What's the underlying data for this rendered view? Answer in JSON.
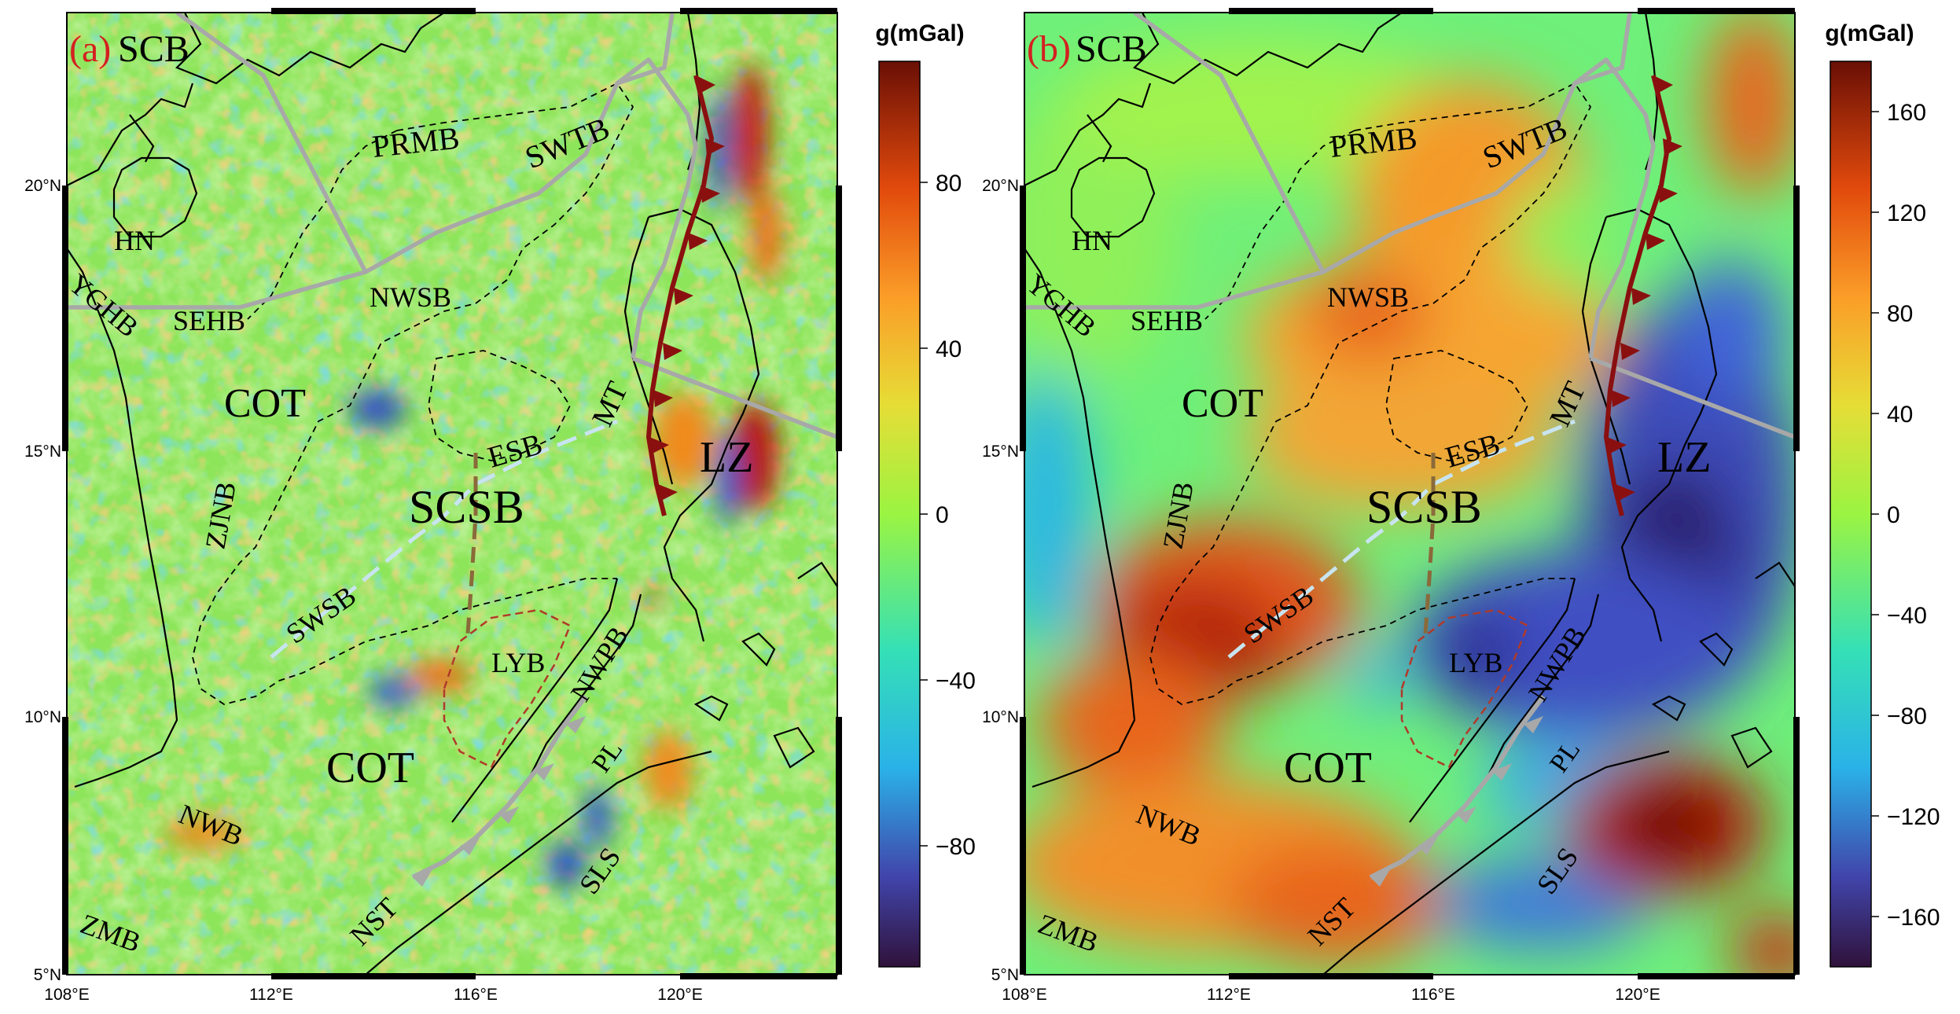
{
  "panels": [
    {
      "id": "a",
      "tag": "(a)",
      "lon_ticks": [
        "108°E",
        "112°E",
        "116°E",
        "120°E"
      ],
      "lat_ticks": [
        "20°N",
        "15°N",
        "10°N",
        "5°N"
      ],
      "colorbar": {
        "title": "g(mGal)",
        "ticks": [
          "80",
          "40",
          "0",
          "−40",
          "−80"
        ]
      },
      "labels": {
        "scb": "SCB",
        "prmb": "PRMB",
        "swtb": "SWTB",
        "hn": "HN",
        "yghb": "YGHB",
        "sehb": "SEHB",
        "nwsb": "NWSB",
        "cot_north": "COT",
        "mt": "MT",
        "esb": "ESB",
        "lz": "LZ",
        "zjnb": "ZJNB",
        "scsb": "SCSB",
        "swsb": "SWSB",
        "lyb": "LYB",
        "nwpb": "NWPB",
        "cot_south": "COT",
        "pl": "PL",
        "nwb": "NWB",
        "sls": "SLS",
        "zmb": "ZMB",
        "nst": "NST"
      }
    },
    {
      "id": "b",
      "tag": "(b)",
      "lon_ticks": [
        "108°E",
        "112°E",
        "116°E",
        "120°E"
      ],
      "lat_ticks": [
        "20°N",
        "15°N",
        "10°N",
        "5°N"
      ],
      "colorbar": {
        "title": "g(mGal)",
        "ticks": [
          "160",
          "120",
          "80",
          "40",
          "0",
          "−40",
          "−80",
          "−120",
          "−160"
        ]
      },
      "labels": {
        "scb": "SCB",
        "prmb": "PRMB",
        "swtb": "SWTB",
        "hn": "HN",
        "yghb": "YGHB",
        "sehb": "SEHB",
        "nwsb": "NWSB",
        "cot_north": "COT",
        "mt": "MT",
        "esb": "ESB",
        "lz": "LZ",
        "zjnb": "ZJNB",
        "scsb": "SCSB",
        "swsb": "SWSB",
        "lyb": "LYB",
        "nwpb": "NWPB",
        "cot_south": "COT",
        "pl": "PL",
        "nwb": "NWB",
        "sls": "SLS",
        "zmb": "ZMB",
        "nst": "NST"
      }
    }
  ],
  "colors": {
    "tag": "#d42020",
    "boundary": "#a8a8a8",
    "trench": "#8a1010",
    "spreading_axis": "#c8e4f0",
    "fossil_ridge": "#8a6a3a",
    "lyb_outline": "#b03a2a",
    "coast": "#000000"
  }
}
